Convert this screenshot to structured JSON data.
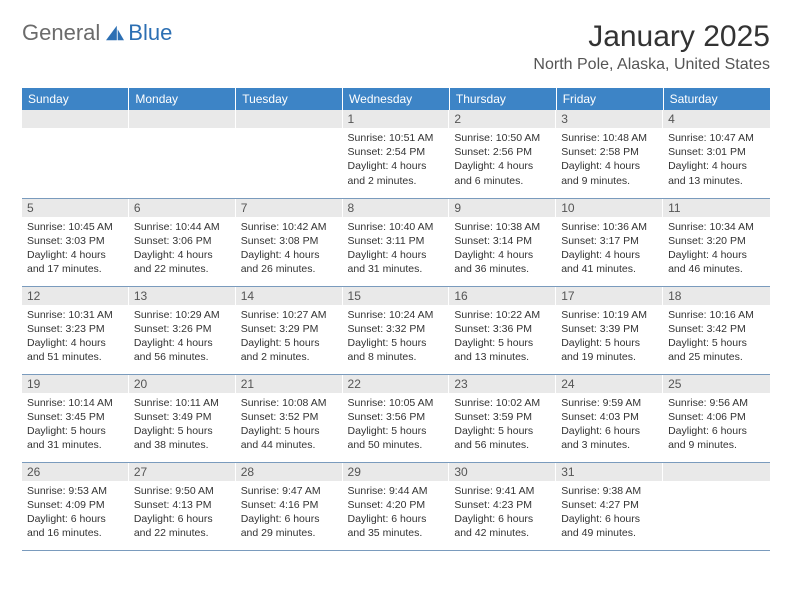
{
  "brand": {
    "part1": "General",
    "part2": "Blue"
  },
  "title": "January 2025",
  "location": "North Pole, Alaska, United States",
  "colors": {
    "header_bg": "#3d84c6",
    "header_text": "#ffffff",
    "daynum_bg": "#e9e9e9",
    "cell_border": "#7a9bbd",
    "brand_gray": "#6b6b6b",
    "brand_blue": "#2c6fb3"
  },
  "day_names": [
    "Sunday",
    "Monday",
    "Tuesday",
    "Wednesday",
    "Thursday",
    "Friday",
    "Saturday"
  ],
  "weeks": [
    [
      {
        "n": "",
        "sunrise": "",
        "sunset": "",
        "daylight": ""
      },
      {
        "n": "",
        "sunrise": "",
        "sunset": "",
        "daylight": ""
      },
      {
        "n": "",
        "sunrise": "",
        "sunset": "",
        "daylight": ""
      },
      {
        "n": "1",
        "sunrise": "Sunrise: 10:51 AM",
        "sunset": "Sunset: 2:54 PM",
        "daylight": "Daylight: 4 hours and 2 minutes."
      },
      {
        "n": "2",
        "sunrise": "Sunrise: 10:50 AM",
        "sunset": "Sunset: 2:56 PM",
        "daylight": "Daylight: 4 hours and 6 minutes."
      },
      {
        "n": "3",
        "sunrise": "Sunrise: 10:48 AM",
        "sunset": "Sunset: 2:58 PM",
        "daylight": "Daylight: 4 hours and 9 minutes."
      },
      {
        "n": "4",
        "sunrise": "Sunrise: 10:47 AM",
        "sunset": "Sunset: 3:01 PM",
        "daylight": "Daylight: 4 hours and 13 minutes."
      }
    ],
    [
      {
        "n": "5",
        "sunrise": "Sunrise: 10:45 AM",
        "sunset": "Sunset: 3:03 PM",
        "daylight": "Daylight: 4 hours and 17 minutes."
      },
      {
        "n": "6",
        "sunrise": "Sunrise: 10:44 AM",
        "sunset": "Sunset: 3:06 PM",
        "daylight": "Daylight: 4 hours and 22 minutes."
      },
      {
        "n": "7",
        "sunrise": "Sunrise: 10:42 AM",
        "sunset": "Sunset: 3:08 PM",
        "daylight": "Daylight: 4 hours and 26 minutes."
      },
      {
        "n": "8",
        "sunrise": "Sunrise: 10:40 AM",
        "sunset": "Sunset: 3:11 PM",
        "daylight": "Daylight: 4 hours and 31 minutes."
      },
      {
        "n": "9",
        "sunrise": "Sunrise: 10:38 AM",
        "sunset": "Sunset: 3:14 PM",
        "daylight": "Daylight: 4 hours and 36 minutes."
      },
      {
        "n": "10",
        "sunrise": "Sunrise: 10:36 AM",
        "sunset": "Sunset: 3:17 PM",
        "daylight": "Daylight: 4 hours and 41 minutes."
      },
      {
        "n": "11",
        "sunrise": "Sunrise: 10:34 AM",
        "sunset": "Sunset: 3:20 PM",
        "daylight": "Daylight: 4 hours and 46 minutes."
      }
    ],
    [
      {
        "n": "12",
        "sunrise": "Sunrise: 10:31 AM",
        "sunset": "Sunset: 3:23 PM",
        "daylight": "Daylight: 4 hours and 51 minutes."
      },
      {
        "n": "13",
        "sunrise": "Sunrise: 10:29 AM",
        "sunset": "Sunset: 3:26 PM",
        "daylight": "Daylight: 4 hours and 56 minutes."
      },
      {
        "n": "14",
        "sunrise": "Sunrise: 10:27 AM",
        "sunset": "Sunset: 3:29 PM",
        "daylight": "Daylight: 5 hours and 2 minutes."
      },
      {
        "n": "15",
        "sunrise": "Sunrise: 10:24 AM",
        "sunset": "Sunset: 3:32 PM",
        "daylight": "Daylight: 5 hours and 8 minutes."
      },
      {
        "n": "16",
        "sunrise": "Sunrise: 10:22 AM",
        "sunset": "Sunset: 3:36 PM",
        "daylight": "Daylight: 5 hours and 13 minutes."
      },
      {
        "n": "17",
        "sunrise": "Sunrise: 10:19 AM",
        "sunset": "Sunset: 3:39 PM",
        "daylight": "Daylight: 5 hours and 19 minutes."
      },
      {
        "n": "18",
        "sunrise": "Sunrise: 10:16 AM",
        "sunset": "Sunset: 3:42 PM",
        "daylight": "Daylight: 5 hours and 25 minutes."
      }
    ],
    [
      {
        "n": "19",
        "sunrise": "Sunrise: 10:14 AM",
        "sunset": "Sunset: 3:45 PM",
        "daylight": "Daylight: 5 hours and 31 minutes."
      },
      {
        "n": "20",
        "sunrise": "Sunrise: 10:11 AM",
        "sunset": "Sunset: 3:49 PM",
        "daylight": "Daylight: 5 hours and 38 minutes."
      },
      {
        "n": "21",
        "sunrise": "Sunrise: 10:08 AM",
        "sunset": "Sunset: 3:52 PM",
        "daylight": "Daylight: 5 hours and 44 minutes."
      },
      {
        "n": "22",
        "sunrise": "Sunrise: 10:05 AM",
        "sunset": "Sunset: 3:56 PM",
        "daylight": "Daylight: 5 hours and 50 minutes."
      },
      {
        "n": "23",
        "sunrise": "Sunrise: 10:02 AM",
        "sunset": "Sunset: 3:59 PM",
        "daylight": "Daylight: 5 hours and 56 minutes."
      },
      {
        "n": "24",
        "sunrise": "Sunrise: 9:59 AM",
        "sunset": "Sunset: 4:03 PM",
        "daylight": "Daylight: 6 hours and 3 minutes."
      },
      {
        "n": "25",
        "sunrise": "Sunrise: 9:56 AM",
        "sunset": "Sunset: 4:06 PM",
        "daylight": "Daylight: 6 hours and 9 minutes."
      }
    ],
    [
      {
        "n": "26",
        "sunrise": "Sunrise: 9:53 AM",
        "sunset": "Sunset: 4:09 PM",
        "daylight": "Daylight: 6 hours and 16 minutes."
      },
      {
        "n": "27",
        "sunrise": "Sunrise: 9:50 AM",
        "sunset": "Sunset: 4:13 PM",
        "daylight": "Daylight: 6 hours and 22 minutes."
      },
      {
        "n": "28",
        "sunrise": "Sunrise: 9:47 AM",
        "sunset": "Sunset: 4:16 PM",
        "daylight": "Daylight: 6 hours and 29 minutes."
      },
      {
        "n": "29",
        "sunrise": "Sunrise: 9:44 AM",
        "sunset": "Sunset: 4:20 PM",
        "daylight": "Daylight: 6 hours and 35 minutes."
      },
      {
        "n": "30",
        "sunrise": "Sunrise: 9:41 AM",
        "sunset": "Sunset: 4:23 PM",
        "daylight": "Daylight: 6 hours and 42 minutes."
      },
      {
        "n": "31",
        "sunrise": "Sunrise: 9:38 AM",
        "sunset": "Sunset: 4:27 PM",
        "daylight": "Daylight: 6 hours and 49 minutes."
      },
      {
        "n": "",
        "sunrise": "",
        "sunset": "",
        "daylight": ""
      }
    ]
  ]
}
